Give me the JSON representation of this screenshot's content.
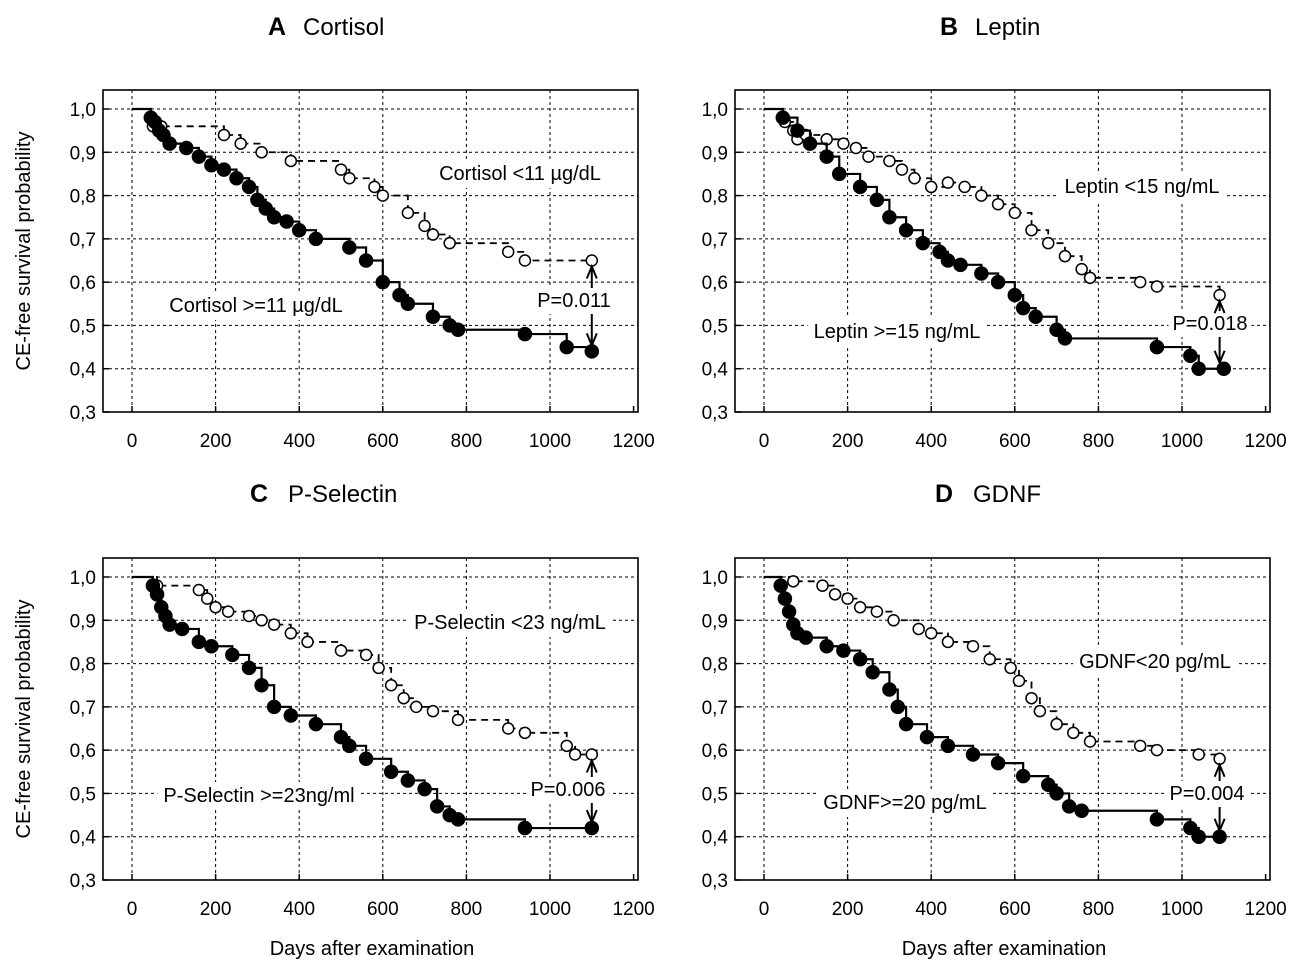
{
  "y_axis_label": "CE-free survival probability",
  "x_axis_label": "Days after examination",
  "chart_data": [
    {
      "type": "line",
      "panel_letter": "A",
      "title": "Cortisol",
      "xlim": [
        0,
        1200
      ],
      "ylim": [
        0.3,
        1.0
      ],
      "xticks": [
        "0",
        "200",
        "400",
        "600",
        "800",
        "1000",
        "1200"
      ],
      "yticks": [
        "1,0",
        "0,9",
        "0,8",
        "0,7",
        "0,6",
        "0,5",
        "0,4",
        "0,3"
      ],
      "grid": true,
      "pvalue": "P=0.011",
      "series": [
        {
          "name": "Cortisol <11 µg/dL",
          "style": "dashed-open",
          "x": [
            0,
            50,
            70,
            220,
            260,
            310,
            380,
            500,
            520,
            580,
            600,
            660,
            700,
            720,
            760,
            900,
            940,
            1100
          ],
          "y": [
            1.0,
            0.96,
            0.96,
            0.94,
            0.92,
            0.9,
            0.88,
            0.86,
            0.84,
            0.82,
            0.8,
            0.76,
            0.73,
            0.71,
            0.69,
            0.67,
            0.65,
            0.65
          ]
        },
        {
          "name": "Cortisol >=11 µg/dL",
          "style": "solid-filled",
          "x": [
            0,
            45,
            55,
            65,
            75,
            90,
            130,
            160,
            190,
            220,
            250,
            280,
            300,
            320,
            340,
            370,
            400,
            440,
            520,
            560,
            600,
            640,
            660,
            720,
            760,
            780,
            940,
            1040,
            1100
          ],
          "y": [
            1.0,
            0.98,
            0.97,
            0.95,
            0.94,
            0.92,
            0.91,
            0.89,
            0.87,
            0.86,
            0.84,
            0.82,
            0.79,
            0.77,
            0.75,
            0.74,
            0.72,
            0.7,
            0.68,
            0.65,
            0.6,
            0.57,
            0.55,
            0.52,
            0.5,
            0.49,
            0.48,
            0.45,
            0.44
          ]
        }
      ],
      "labels": [
        "Cortisol <11 µg/dL",
        "Cortisol >=11 µg/dL"
      ]
    },
    {
      "type": "line",
      "panel_letter": "B",
      "title": "Leptin",
      "xlim": [
        0,
        1200
      ],
      "ylim": [
        0.3,
        1.0
      ],
      "xticks": [
        "0",
        "200",
        "400",
        "600",
        "800",
        "1000",
        "1200"
      ],
      "yticks": [
        "1,0",
        "0,9",
        "0,8",
        "0,7",
        "0,6",
        "0,5",
        "0,4",
        "0,3"
      ],
      "grid": true,
      "pvalue": "P=0.018",
      "series": [
        {
          "name": "Leptin <15 ng/mL",
          "style": "dashed-open",
          "x": [
            0,
            50,
            70,
            80,
            100,
            150,
            190,
            220,
            250,
            300,
            330,
            360,
            400,
            440,
            480,
            520,
            560,
            600,
            640,
            680,
            720,
            760,
            780,
            900,
            940,
            1090
          ],
          "y": [
            1.0,
            0.97,
            0.95,
            0.93,
            0.94,
            0.93,
            0.92,
            0.91,
            0.89,
            0.88,
            0.86,
            0.84,
            0.82,
            0.83,
            0.82,
            0.8,
            0.78,
            0.76,
            0.72,
            0.69,
            0.66,
            0.63,
            0.61,
            0.6,
            0.59,
            0.57
          ]
        },
        {
          "name": "Leptin >=15 ng/mL",
          "style": "solid-filled",
          "x": [
            0,
            45,
            80,
            110,
            150,
            180,
            230,
            270,
            300,
            340,
            380,
            420,
            440,
            470,
            520,
            560,
            600,
            620,
            650,
            700,
            720,
            940,
            1020,
            1040,
            1100
          ],
          "y": [
            1.0,
            0.98,
            0.95,
            0.92,
            0.89,
            0.85,
            0.82,
            0.79,
            0.75,
            0.72,
            0.69,
            0.67,
            0.65,
            0.64,
            0.62,
            0.6,
            0.57,
            0.54,
            0.52,
            0.49,
            0.47,
            0.45,
            0.43,
            0.4,
            0.4
          ]
        }
      ],
      "labels": [
        "Leptin <15 ng/mL",
        "Leptin >=15 ng/mL"
      ]
    },
    {
      "type": "line",
      "panel_letter": "C",
      "title": "P-Selectin",
      "xlim": [
        0,
        1200
      ],
      "ylim": [
        0.3,
        1.0
      ],
      "xticks": [
        "0",
        "200",
        "400",
        "600",
        "800",
        "1000",
        "1200"
      ],
      "yticks": [
        "1,0",
        "0,9",
        "0,8",
        "0,7",
        "0,6",
        "0,5",
        "0,4",
        "0,3"
      ],
      "grid": true,
      "pvalue": "P=0.006",
      "series": [
        {
          "name": "P-Selectin <23 ng/mL",
          "style": "dashed-open",
          "x": [
            0,
            60,
            160,
            180,
            200,
            230,
            280,
            310,
            340,
            380,
            420,
            500,
            560,
            590,
            620,
            650,
            680,
            720,
            780,
            900,
            940,
            1040,
            1060,
            1100
          ],
          "y": [
            1.0,
            0.98,
            0.97,
            0.95,
            0.93,
            0.92,
            0.91,
            0.9,
            0.89,
            0.87,
            0.85,
            0.83,
            0.82,
            0.79,
            0.75,
            0.72,
            0.7,
            0.69,
            0.67,
            0.65,
            0.64,
            0.61,
            0.59,
            0.59
          ]
        },
        {
          "name": "P-Selectin >=23ng/ml",
          "style": "solid-filled",
          "x": [
            0,
            50,
            60,
            70,
            80,
            90,
            120,
            160,
            190,
            240,
            280,
            310,
            340,
            380,
            440,
            500,
            520,
            560,
            620,
            660,
            700,
            730,
            760,
            780,
            940,
            1100
          ],
          "y": [
            1.0,
            0.98,
            0.96,
            0.93,
            0.91,
            0.89,
            0.88,
            0.85,
            0.84,
            0.82,
            0.79,
            0.75,
            0.7,
            0.68,
            0.66,
            0.63,
            0.61,
            0.58,
            0.55,
            0.53,
            0.51,
            0.47,
            0.45,
            0.44,
            0.42,
            0.42
          ]
        }
      ],
      "labels": [
        "P-Selectin <23 ng/mL",
        "P-Selectin >=23ng/ml"
      ]
    },
    {
      "type": "line",
      "panel_letter": "D",
      "title": "GDNF",
      "xlim": [
        0,
        1200
      ],
      "ylim": [
        0.3,
        1.0
      ],
      "xticks": [
        "0",
        "200",
        "400",
        "600",
        "800",
        "1000",
        "1200"
      ],
      "yticks": [
        "1,0",
        "0,9",
        "0,8",
        "0,7",
        "0,6",
        "0,5",
        "0,4",
        "0,3"
      ],
      "grid": true,
      "pvalue": "P=0.004",
      "series": [
        {
          "name": "GDNF<20 pg/mL",
          "style": "dashed-open",
          "x": [
            0,
            70,
            140,
            170,
            200,
            230,
            270,
            310,
            370,
            400,
            440,
            500,
            540,
            590,
            610,
            640,
            660,
            700,
            740,
            780,
            900,
            940,
            1040,
            1090
          ],
          "y": [
            1.0,
            0.99,
            0.98,
            0.96,
            0.95,
            0.93,
            0.92,
            0.9,
            0.88,
            0.87,
            0.85,
            0.84,
            0.81,
            0.79,
            0.76,
            0.72,
            0.69,
            0.66,
            0.64,
            0.62,
            0.61,
            0.6,
            0.59,
            0.58
          ]
        },
        {
          "name": "GDNF>=20 pg/mL",
          "style": "solid-filled",
          "x": [
            0,
            40,
            50,
            60,
            70,
            80,
            100,
            150,
            190,
            230,
            260,
            300,
            320,
            340,
            390,
            440,
            500,
            560,
            620,
            680,
            700,
            730,
            760,
            940,
            1020,
            1040,
            1090
          ],
          "y": [
            1.0,
            0.98,
            0.95,
            0.92,
            0.89,
            0.87,
            0.86,
            0.84,
            0.83,
            0.81,
            0.78,
            0.74,
            0.7,
            0.66,
            0.63,
            0.61,
            0.59,
            0.57,
            0.54,
            0.52,
            0.5,
            0.47,
            0.46,
            0.44,
            0.42,
            0.4,
            0.4
          ]
        }
      ],
      "labels": [
        "GDNF<20 pg/mL",
        "GDNF>=20 pg/mL"
      ]
    }
  ]
}
